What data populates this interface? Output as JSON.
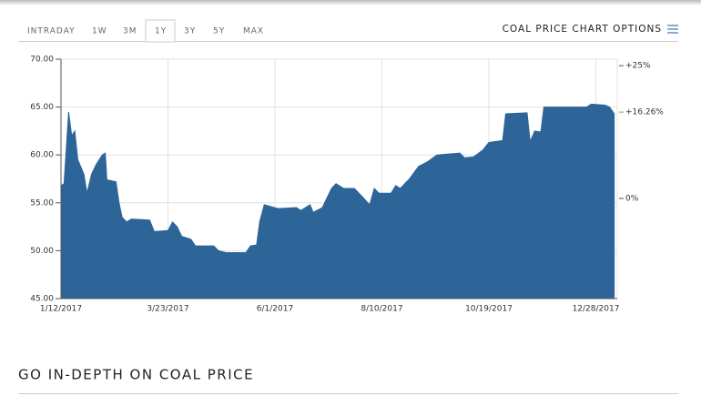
{
  "tabs": [
    "INTRADAY",
    "1W",
    "3M",
    "1Y",
    "3Y",
    "5Y",
    "MAX"
  ],
  "options_label": "COAL PRICE CHART OPTIONS",
  "section_heading": "GO IN-DEPTH ON COAL PRICE",
  "chart_data": {
    "type": "area",
    "color": "#2e6599",
    "grid": true,
    "x": [
      "1/12/2017",
      "1/14/2017",
      "1/17/2017",
      "1/19/2017",
      "1/21/2017",
      "1/23/2017",
      "1/27/2017",
      "1/29/2017",
      "2/1/2017",
      "2/4/2017",
      "2/8/2017",
      "2/10/2017",
      "2/11/2017",
      "2/17/2017",
      "2/19/2017",
      "2/21/2017",
      "2/24/2017",
      "2/27/2017",
      "3/11/2017",
      "3/14/2017",
      "3/23/2017",
      "3/26/2017",
      "3/29/2017",
      "4/1/2017",
      "4/7/2017",
      "4/10/2017",
      "4/22/2017",
      "4/25/2017",
      "4/30/2017",
      "5/13/2017",
      "5/16/2017",
      "5/20/2017",
      "5/22/2017",
      "5/25/2017",
      "6/3/2017",
      "6/15/2017",
      "6/18/2017",
      "6/24/2017",
      "6/26/2017",
      "7/2/2017",
      "7/5/2017",
      "7/8/2017",
      "7/11/2017",
      "7/16/2017",
      "7/23/2017",
      "7/29/2017",
      "8/2/2017",
      "8/5/2017",
      "8/8/2017",
      "8/16/2017",
      "8/19/2017",
      "8/22/2017",
      "8/28/2017",
      "9/3/2017",
      "9/9/2017",
      "9/15/2017",
      "9/30/2017",
      "10/3/2017",
      "10/9/2017",
      "10/15/2017",
      "10/19/2017",
      "10/28/2017",
      "10/30/2017",
      "11/13/2017",
      "11/15/2017",
      "11/18/2017",
      "11/22/2017",
      "11/24/2017",
      "12/22/2017",
      "12/25/2017",
      "1/3/2018",
      "1/6/2018",
      "1/9/2018"
    ],
    "values": [
      56.8,
      57,
      64.5,
      62,
      62.5,
      59.5,
      58,
      56,
      58,
      59,
      60,
      60.2,
      57.4,
      57.2,
      55,
      53.5,
      53,
      53.3,
      53.2,
      52,
      52.1,
      53,
      52.5,
      51.5,
      51.2,
      50.5,
      50.5,
      50,
      49.8,
      49.8,
      50.5,
      50.6,
      53,
      54.8,
      54.4,
      54.5,
      54.2,
      54.8,
      54,
      54.5,
      55.5,
      56.5,
      57,
      56.5,
      56.5,
      55.5,
      54.8,
      56.5,
      56,
      56,
      56.8,
      56.5,
      57.5,
      58.8,
      59.3,
      60,
      60.2,
      59.7,
      59.8,
      60.5,
      61.3,
      61.5,
      64.3,
      64.4,
      61.4,
      62.5,
      62.4,
      65,
      65,
      65.3,
      65.2,
      65,
      64.3
    ],
    "xlim": [
      "1/12/2017",
      "1/11/2018"
    ],
    "xticks": [
      "1/12/2017",
      "3/23/2017",
      "6/1/2017",
      "8/10/2017",
      "10/19/2017",
      "12/28/2017"
    ],
    "ylim": [
      45,
      70
    ],
    "yticks": [
      {
        "value": 45,
        "label": "45.00"
      },
      {
        "value": 50,
        "label": "50.00"
      },
      {
        "value": 55,
        "label": "55.00"
      },
      {
        "value": 60,
        "label": "60.00"
      },
      {
        "value": 65,
        "label": "65.00"
      },
      {
        "value": 70,
        "label": "70.00"
      }
    ],
    "y2lim": [
      -18.86,
      26.22
    ],
    "y2ticks": [
      {
        "value": 25,
        "label": "+25%"
      },
      {
        "value": 0,
        "label": "0%"
      }
    ],
    "change_label": {
      "value": 16.26,
      "label": "+16.26%",
      "color": "#6aaf3d"
    }
  }
}
